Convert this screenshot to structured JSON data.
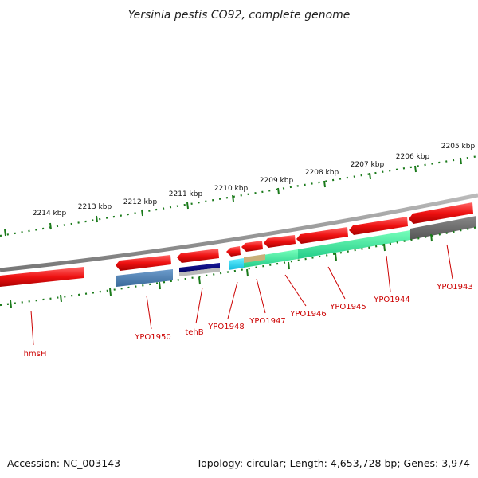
{
  "title": "Yersinia pestis CO92, complete genome",
  "footer": {
    "accession": "Accession: NC_003143",
    "summary": "Topology: circular; Length: 4,653,728 bp; Genes: 3,974"
  },
  "scale_labels": [
    "2214 kbp",
    "2213 kbp",
    "2212 kbp",
    "2211 kbp",
    "2210 kbp",
    "2209 kbp",
    "2208 kbp",
    "2207 kbp",
    "2206 kbp",
    "2205 kbp"
  ],
  "gene_labels": [
    "hmsH",
    "YPO1950",
    "tehB",
    "YPO1948",
    "YPO1947",
    "YPO1946",
    "YPO1945",
    "YPO1944",
    "YPO1943"
  ],
  "colors": {
    "gene": "#ee1111",
    "label": "#cc0000",
    "backbone": "#888888",
    "ticks": "#1a7a1a",
    "cds_blue": "#4a7fb5",
    "cds_navy": "#000080",
    "cds_cyan": "#22ddee",
    "cds_green": "#33ee99",
    "cds_tan": "#c8b07a",
    "cds_gray": "#666666"
  }
}
